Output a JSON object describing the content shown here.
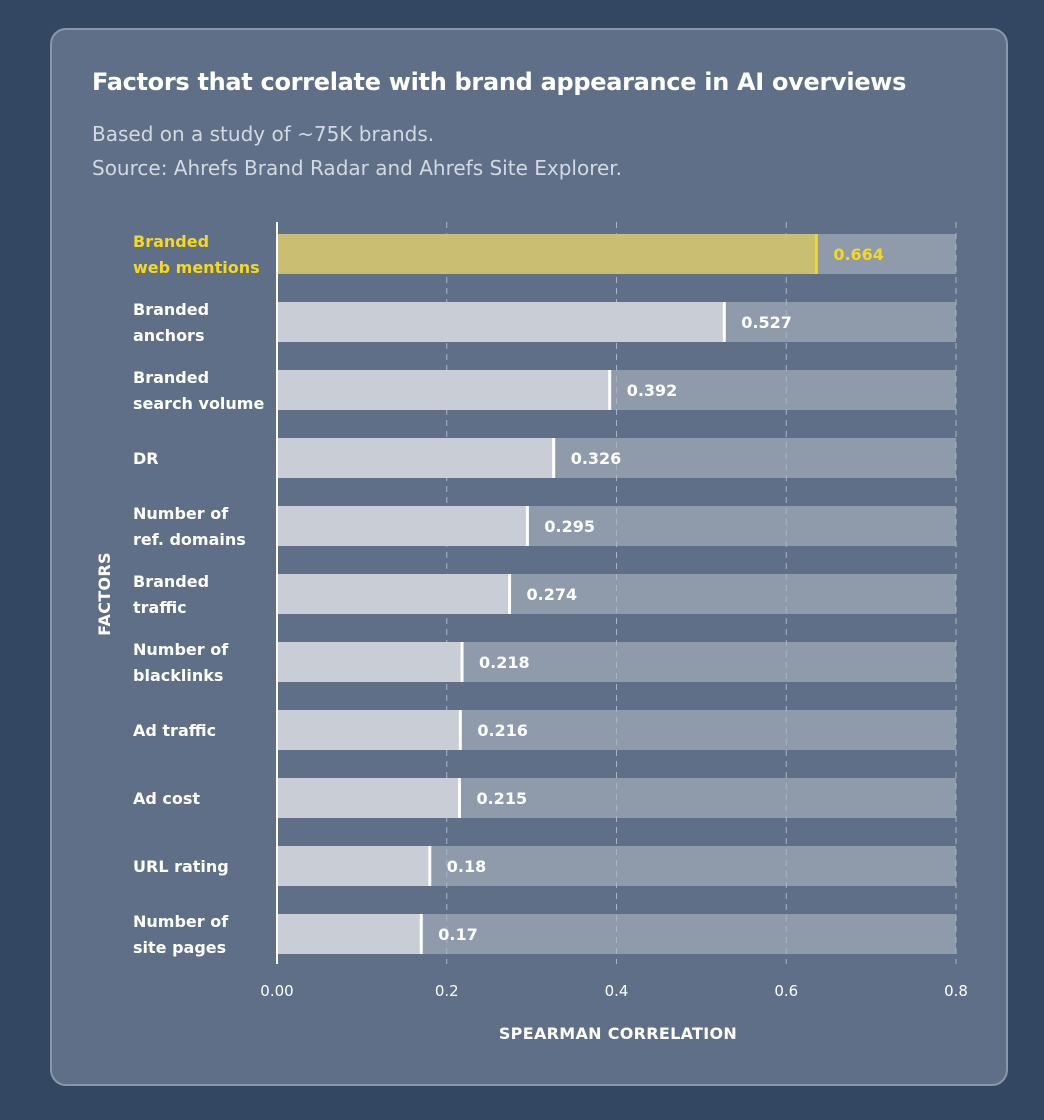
{
  "title": "Factors that correlate with brand appearance in AI overviews",
  "subtitle_line1": "Based on a study of ~75K brands.",
  "subtitle_line2": "Source: Ahrefs Brand Radar and Ahrefs Site Explorer.",
  "colors": {
    "highlight_bar": "#c9be72",
    "highlight_text": "#f5d81f",
    "bar_fill": "#c9cdd6",
    "bar_track": "#8f9bab",
    "card_bg": "#5f6f87",
    "page_bg": "#334763"
  },
  "chart_data": {
    "type": "bar",
    "orientation": "horizontal",
    "categories": [
      [
        "Branded",
        "web mentions"
      ],
      [
        "Branded",
        "anchors"
      ],
      [
        "Branded",
        "search volume"
      ],
      [
        "DR"
      ],
      [
        "Number of",
        "ref. domains"
      ],
      [
        "Branded",
        "traffic"
      ],
      [
        "Number of",
        "blacklinks"
      ],
      [
        "Ad traffic"
      ],
      [
        "Ad cost"
      ],
      [
        "URL rating"
      ],
      [
        "Number of",
        "site pages"
      ]
    ],
    "values": [
      0.664,
      0.527,
      0.392,
      0.326,
      0.295,
      0.274,
      0.218,
      0.216,
      0.215,
      0.18,
      0.17
    ],
    "value_labels": [
      "0.664",
      "0.527",
      "0.392",
      "0.326",
      "0.295",
      "0.274",
      "0.218",
      "0.216",
      "0.215",
      "0.18",
      "0.17"
    ],
    "highlight_index": 0,
    "xlim": [
      0,
      0.8
    ],
    "xticks": [
      0,
      0.2,
      0.4,
      0.6,
      0.8
    ],
    "xtick_labels": [
      "0.00",
      "0.2",
      "0.4",
      "0.6",
      "0.8"
    ],
    "xlabel": "SPEARMAN CORRELATION",
    "ylabel": "FACTORS",
    "grid": "vertical dashed"
  }
}
